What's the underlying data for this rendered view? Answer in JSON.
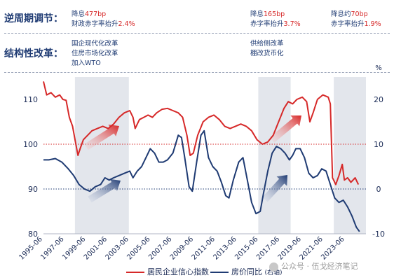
{
  "labels": {
    "counter_cyclical": "逆周期调节：",
    "structural": "结构性改革："
  },
  "notes": {
    "n1": {
      "l1_prefix": "降息",
      "l1_red": "477bp",
      "l2_prefix": "财政赤字率抬升",
      "l2_red": "2.4%"
    },
    "n2": {
      "l1_prefix": "降息",
      "l1_red": "165bp",
      "l2_prefix": "赤字率抬升",
      "l2_red": "3.7%"
    },
    "n3": {
      "l1_prefix": "降息约",
      "l1_red": "70bp",
      "l2_prefix": "赤字率抬升",
      "l2_red": "1.9%"
    },
    "s1": [
      "国企现代化改革",
      "住房市场化改革",
      "加入WTO"
    ],
    "s2": [
      "供给侧改革",
      "棚改货币化"
    ]
  },
  "legend": {
    "red_label": "居民企业信心指数",
    "blue_label": "房价同比",
    "blue_sub": "(右轴)",
    "red_color": "#d62828",
    "blue_color": "#1f3b73"
  },
  "watermark": {
    "text": "公众号 · 伍戈经济笔记",
    "icon": "wechat-icon"
  },
  "chart_data": {
    "type": "line",
    "x_ticks": [
      "1995-06",
      "1997-06",
      "1999-06",
      "2001-06",
      "2003-06",
      "2005-06",
      "2007-06",
      "2009-06",
      "2011-06",
      "2013-06",
      "2015-06",
      "2017-06",
      "2019-06",
      "2021-06",
      "2023-06"
    ],
    "left_axis": {
      "ticks": [
        80,
        90,
        100,
        110
      ],
      "ylim": [
        80,
        115
      ]
    },
    "right_axis": {
      "ticks": [
        -10,
        0,
        10,
        20
      ],
      "ylim": [
        -10,
        25
      ],
      "unit": "%"
    },
    "reference_lines": {
      "left": 100,
      "right": 0
    },
    "shaded_periods": [
      [
        "1998-06",
        "2003-06"
      ],
      [
        "2015-06",
        "2018-06"
      ],
      [
        "2022-06",
        "2025-06"
      ]
    ],
    "series": [
      {
        "name": "居民企业信心指数",
        "axis": "left",
        "color": "#d62828",
        "points": [
          [
            1995.5,
            114
          ],
          [
            1995.8,
            111
          ],
          [
            1996.2,
            111.5
          ],
          [
            1996.6,
            110.5
          ],
          [
            1997.0,
            111
          ],
          [
            1997.3,
            110
          ],
          [
            1997.6,
            109.8
          ],
          [
            1997.9,
            106
          ],
          [
            1998.2,
            104
          ],
          [
            1998.5,
            100
          ],
          [
            1998.7,
            97.5
          ],
          [
            1998.9,
            99
          ],
          [
            1999.2,
            101
          ],
          [
            1999.6,
            102
          ],
          [
            2000.0,
            103
          ],
          [
            2000.5,
            103.5
          ],
          [
            2001.0,
            104
          ],
          [
            2001.5,
            103.5
          ],
          [
            2002.0,
            104.5
          ],
          [
            2002.5,
            106
          ],
          [
            2003.0,
            107
          ],
          [
            2003.5,
            107.5
          ],
          [
            2003.8,
            106
          ],
          [
            2004.0,
            103.5
          ],
          [
            2004.4,
            105.5
          ],
          [
            2004.8,
            106
          ],
          [
            2005.2,
            106.5
          ],
          [
            2005.6,
            106
          ],
          [
            2006.0,
            107
          ],
          [
            2006.5,
            107.8
          ],
          [
            2007.0,
            108
          ],
          [
            2007.5,
            107.5
          ],
          [
            2008.0,
            107
          ],
          [
            2008.4,
            106
          ],
          [
            2008.8,
            102
          ],
          [
            2009.1,
            97.5
          ],
          [
            2009.4,
            98
          ],
          [
            2009.8,
            102
          ],
          [
            2010.3,
            105
          ],
          [
            2010.8,
            106
          ],
          [
            2011.3,
            106.5
          ],
          [
            2011.8,
            105.5
          ],
          [
            2012.3,
            104
          ],
          [
            2012.8,
            103.5
          ],
          [
            2013.3,
            104
          ],
          [
            2013.8,
            104.5
          ],
          [
            2014.3,
            104
          ],
          [
            2014.8,
            103
          ],
          [
            2015.3,
            101
          ],
          [
            2015.8,
            100
          ],
          [
            2016.3,
            100.5
          ],
          [
            2016.8,
            102
          ],
          [
            2017.3,
            105
          ],
          [
            2017.8,
            108
          ],
          [
            2018.2,
            109.5
          ],
          [
            2018.6,
            109
          ],
          [
            2019.0,
            110
          ],
          [
            2019.5,
            110.5
          ],
          [
            2019.9,
            109.5
          ],
          [
            2020.2,
            105
          ],
          [
            2020.5,
            107
          ],
          [
            2020.9,
            110
          ],
          [
            2021.4,
            111
          ],
          [
            2021.9,
            110.5
          ],
          [
            2022.1,
            109
          ],
          [
            2022.3,
            92.5
          ],
          [
            2022.6,
            91
          ],
          [
            2022.9,
            93
          ],
          [
            2023.2,
            95.5
          ],
          [
            2023.4,
            92
          ],
          [
            2023.7,
            92.5
          ],
          [
            2024.0,
            91.5
          ],
          [
            2024.4,
            92.5
          ],
          [
            2024.7,
            91
          ]
        ]
      },
      {
        "name": "房价同比",
        "axis": "right",
        "color": "#1f3b73",
        "points": [
          [
            1995.5,
            6.5
          ],
          [
            1996.0,
            6.5
          ],
          [
            1996.6,
            6.8
          ],
          [
            1997.2,
            6
          ],
          [
            1997.8,
            4.5
          ],
          [
            1998.3,
            3
          ],
          [
            1998.8,
            1
          ],
          [
            1999.3,
            0
          ],
          [
            1999.8,
            -0.5
          ],
          [
            2000.3,
            0.5
          ],
          [
            2000.8,
            1
          ],
          [
            2001.2,
            2.5
          ],
          [
            2001.6,
            2
          ],
          [
            2002.0,
            2.5
          ],
          [
            2002.5,
            3
          ],
          [
            2003.0,
            3.5
          ],
          [
            2003.5,
            4
          ],
          [
            2003.8,
            2.5
          ],
          [
            2004.2,
            4
          ],
          [
            2004.6,
            5
          ],
          [
            2005.0,
            7
          ],
          [
            2005.4,
            9
          ],
          [
            2005.8,
            8
          ],
          [
            2006.2,
            6
          ],
          [
            2006.6,
            6
          ],
          [
            2007.0,
            6.5
          ],
          [
            2007.5,
            8
          ],
          [
            2008.0,
            12
          ],
          [
            2008.3,
            11.5
          ],
          [
            2008.6,
            7
          ],
          [
            2009.0,
            0.5
          ],
          [
            2009.3,
            -0.5
          ],
          [
            2009.7,
            6
          ],
          [
            2010.1,
            12
          ],
          [
            2010.4,
            13
          ],
          [
            2010.8,
            7
          ],
          [
            2011.2,
            5
          ],
          [
            2011.6,
            4
          ],
          [
            2012.0,
            1.5
          ],
          [
            2012.4,
            -1.5
          ],
          [
            2012.7,
            -2
          ],
          [
            2013.1,
            2
          ],
          [
            2013.6,
            6
          ],
          [
            2014.0,
            7
          ],
          [
            2014.4,
            2
          ],
          [
            2014.8,
            -3
          ],
          [
            2015.2,
            -5.5
          ],
          [
            2015.6,
            -5
          ],
          [
            2015.9,
            -1
          ],
          [
            2016.3,
            4
          ],
          [
            2016.7,
            8
          ],
          [
            2017.1,
            9.5
          ],
          [
            2017.5,
            9
          ],
          [
            2017.9,
            8
          ],
          [
            2018.3,
            6.5
          ],
          [
            2018.6,
            7.5
          ],
          [
            2018.9,
            9
          ],
          [
            2019.3,
            9
          ],
          [
            2019.7,
            7
          ],
          [
            2020.1,
            3.5
          ],
          [
            2020.5,
            2.5
          ],
          [
            2020.9,
            3
          ],
          [
            2021.3,
            4.5
          ],
          [
            2021.7,
            4
          ],
          [
            2022.1,
            1
          ],
          [
            2022.5,
            -2
          ],
          [
            2022.9,
            -3
          ],
          [
            2023.3,
            -2.5
          ],
          [
            2023.7,
            -4
          ],
          [
            2024.1,
            -6
          ],
          [
            2024.5,
            -8.5
          ],
          [
            2024.8,
            -9.5
          ]
        ]
      }
    ]
  }
}
